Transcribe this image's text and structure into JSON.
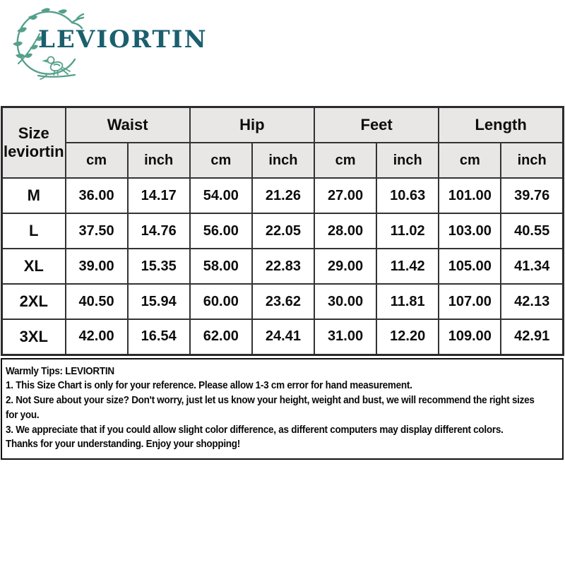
{
  "brand": {
    "name": "LEVIORTIN",
    "text_color": "#1b5f6e",
    "wreath_color": "#55a08a"
  },
  "table": {
    "corner": {
      "line1": "Size",
      "line2": "leviortin"
    },
    "groups": [
      {
        "label": "Waist"
      },
      {
        "label": "Hip"
      },
      {
        "label": "Feet"
      },
      {
        "label": "Length"
      }
    ],
    "units": [
      "cm",
      "inch",
      "cm",
      "inch",
      "cm",
      "inch",
      "cm",
      "inch"
    ],
    "rows": [
      {
        "size": "M",
        "values": [
          "36.00",
          "14.17",
          "54.00",
          "21.26",
          "27.00",
          "10.63",
          "101.00",
          "39.76"
        ]
      },
      {
        "size": "L",
        "values": [
          "37.50",
          "14.76",
          "56.00",
          "22.05",
          "28.00",
          "11.02",
          "103.00",
          "40.55"
        ]
      },
      {
        "size": "XL",
        "values": [
          "39.00",
          "15.35",
          "58.00",
          "22.83",
          "29.00",
          "11.42",
          "105.00",
          "41.34"
        ]
      },
      {
        "size": "2XL",
        "values": [
          "40.50",
          "15.94",
          "60.00",
          "23.62",
          "30.00",
          "11.81",
          "107.00",
          "42.13"
        ]
      },
      {
        "size": "3XL",
        "values": [
          "42.00",
          "16.54",
          "62.00",
          "24.41",
          "31.00",
          "12.20",
          "109.00",
          "42.91"
        ]
      }
    ],
    "header_bg": "#e9e7e5",
    "border_color": "#333333"
  },
  "tips": {
    "lines": [
      "Warmly Tips: LEVIORTIN",
      "1. This Size Chart is only for your reference. Please allow 1-3 cm error for hand measurement.",
      "2. Not Sure about your size? Don't worry, just let us know your height, weight and bust, we will recommend the right sizes",
      "for you.",
      "3. We appreciate that if you could allow slight color difference, as different computers may display different colors.",
      "Thanks for your understanding. Enjoy your shopping!"
    ]
  }
}
